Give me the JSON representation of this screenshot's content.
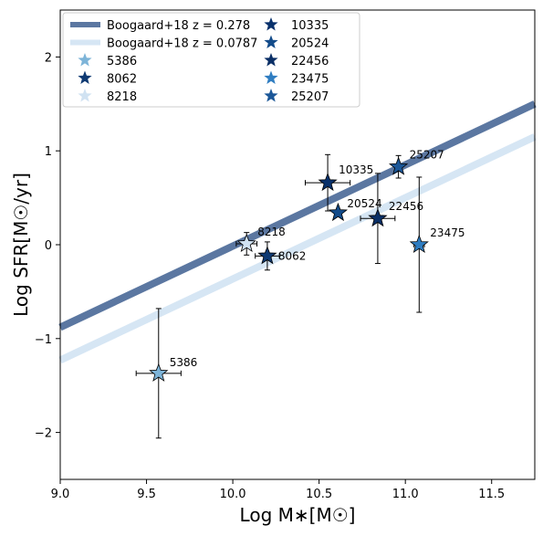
{
  "chart_data": {
    "type": "scatter",
    "xlabel": "Log M∗[M☉]",
    "ylabel": "Log SFR[M☉/yr]",
    "xlim": [
      9.0,
      11.75
    ],
    "ylim": [
      -2.5,
      2.5
    ],
    "xticks": [
      "9.0",
      "9.5",
      "10.0",
      "10.5",
      "11.0",
      "11.5"
    ],
    "xtick_values": [
      9.0,
      9.5,
      10.0,
      10.5,
      11.0,
      11.5
    ],
    "yticks": [
      "−2",
      "−1",
      "0",
      "1",
      "2"
    ],
    "ytick_values": [
      -2,
      -1,
      0,
      1,
      2
    ],
    "grid": false,
    "legend_position": "top-left",
    "lines": [
      {
        "name": "Boogaard+18 z = 0.278",
        "color": "#5b77a1",
        "points": [
          [
            9.0,
            -0.88
          ],
          [
            11.75,
            1.5
          ]
        ]
      },
      {
        "name": "Boogaard+18 z = 0.0787",
        "color": "#d6e6f4",
        "points": [
          [
            9.0,
            -1.23
          ],
          [
            11.75,
            1.15
          ]
        ]
      }
    ],
    "series": [
      {
        "name": "5386",
        "label": "5386",
        "color": "#7db4d8",
        "x": 9.57,
        "y": -1.37,
        "xerr": [
          0.13,
          0.13
        ],
        "yerr": [
          0.69,
          0.69
        ]
      },
      {
        "name": "8062",
        "label": "8062",
        "color": "#0f3a73",
        "x": 10.2,
        "y": -0.12,
        "xerr": [
          0.07,
          0.07
        ],
        "yerr": [
          0.15,
          0.15
        ]
      },
      {
        "name": "8218",
        "label": "8218",
        "color": "#d0e2f2",
        "x": 10.08,
        "y": 0.01,
        "xerr": [
          0.06,
          0.06
        ],
        "yerr": [
          0.12,
          0.12
        ]
      },
      {
        "name": "10335",
        "label": "10335",
        "color": "#08306b",
        "x": 10.55,
        "y": 0.66,
        "xerr": [
          0.13,
          0.13
        ],
        "yerr": [
          0.3,
          0.3
        ]
      },
      {
        "name": "20524",
        "label": "20524",
        "color": "#134b8a",
        "x": 10.61,
        "y": 0.34,
        "xerr": [
          0.0,
          0.0
        ],
        "yerr": [
          0.0,
          0.0
        ]
      },
      {
        "name": "22456",
        "label": "22456",
        "color": "#0a2f66",
        "x": 10.84,
        "y": 0.28,
        "xerr": [
          0.1,
          0.1
        ],
        "yerr": [
          0.48,
          0.48
        ]
      },
      {
        "name": "23475",
        "label": "23475",
        "color": "#2f7dc1",
        "x": 11.08,
        "y": 0.0,
        "xerr": [
          0.03,
          0.03
        ],
        "yerr": [
          0.72,
          0.72
        ]
      },
      {
        "name": "25207",
        "label": "25207",
        "color": "#1b5798",
        "x": 10.96,
        "y": 0.83,
        "xerr": [
          0.02,
          0.02
        ],
        "yerr": [
          0.12,
          0.12
        ]
      }
    ]
  }
}
